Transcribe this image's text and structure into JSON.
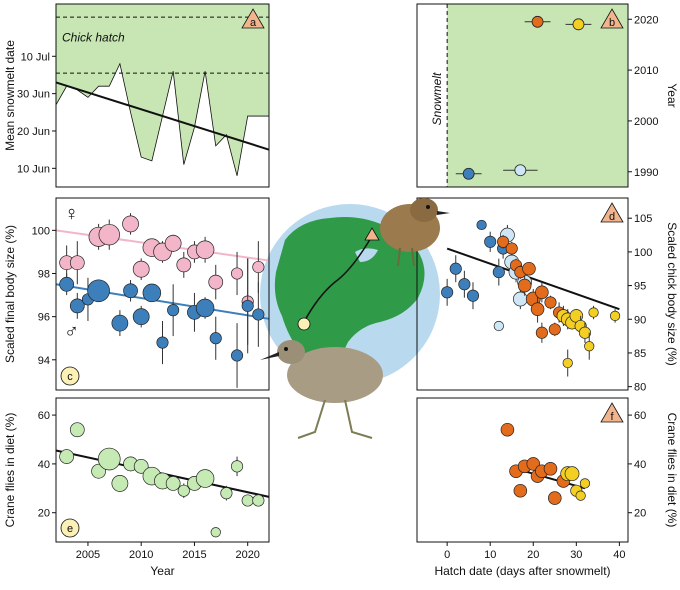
{
  "colors": {
    "shade": "#c8e6b4",
    "female": "#f3b6c8",
    "male": "#3d7fba",
    "light_blue": "#cfe6f6",
    "orange": "#e36b1c",
    "yellow": "#f3cf24",
    "diet": "#c6eab4",
    "panel_label_fill": "#f2b48d",
    "trend": "#111111"
  },
  "icons": {
    "globe": "globe-illustration",
    "chick": "chick-illustration",
    "adult": "adult-shorebird-illustration",
    "female": "female-symbol",
    "male": "male-symbol",
    "marker": "triangle-marker"
  },
  "symbols": {
    "female": "♀",
    "male": "♂"
  },
  "chart_data": [
    {
      "panel": "a",
      "type": "area",
      "ylabel": "Mean snowmelt date",
      "yticks": [
        "10 Jun",
        "20 Jun",
        "30 Jun",
        "10 Jul"
      ],
      "ytick_values": [
        161,
        171,
        181,
        191
      ],
      "ylim": [
        156,
        205
      ],
      "xlim": [
        2002,
        2022
      ],
      "annotation": "Chick hatch",
      "hatch_lines": [
        186.5,
        201.5
      ],
      "x": [
        2002,
        2003,
        2004,
        2005,
        2006,
        2007,
        2008,
        2009,
        2010,
        2011,
        2012,
        2013,
        2014,
        2015,
        2016,
        2017,
        2018,
        2019,
        2020,
        2021,
        2022
      ],
      "values": [
        178,
        183,
        182,
        180,
        183,
        183,
        189,
        176,
        164,
        163,
        175,
        187,
        162,
        172,
        187,
        167,
        170,
        159,
        175,
        175,
        175
      ],
      "trend": [
        [
          2002,
          184
        ],
        [
          2022,
          166
        ]
      ]
    },
    {
      "panel": "b",
      "type": "scatter",
      "ylabel": "Year",
      "yticks": [
        "1990",
        "2000",
        "2010",
        "2020"
      ],
      "ytick_values": [
        1990,
        2000,
        2010,
        2020
      ],
      "ylim": [
        1987,
        2023
      ],
      "xlim": [
        -7,
        42
      ],
      "snowmelt_label": "Snowmelt",
      "points": [
        {
          "x": 5,
          "y": 1989.6,
          "err": 3,
          "color": "#3d7fba"
        },
        {
          "x": 17,
          "y": 1990.3,
          "err": 4,
          "color": "#cfe6f6"
        },
        {
          "x": 21,
          "y": 2019.5,
          "err": 3,
          "color": "#e36b1c"
        },
        {
          "x": 30.5,
          "y": 2019,
          "err": 3,
          "color": "#f3cf24"
        }
      ]
    },
    {
      "panel": "c",
      "type": "scatter",
      "ylabel": "Scaled final body size (%)",
      "yticks": [
        "94",
        "96",
        "98",
        "100"
      ],
      "ytick_values": [
        94,
        96,
        98,
        100
      ],
      "ylim": [
        92.6,
        101.5
      ],
      "xlim": [
        2002,
        2022
      ],
      "female_trend": [
        [
          2002,
          100.0
        ],
        [
          2022,
          98.6
        ]
      ],
      "male_trend": [
        [
          2002,
          97.5
        ],
        [
          2022,
          95.9
        ]
      ],
      "female": [
        {
          "x": 2003,
          "y": 98.5,
          "err": 0.8,
          "n": 2
        },
        {
          "x": 2004,
          "y": 98.5,
          "err": 1.0,
          "n": 2
        },
        {
          "x": 2006,
          "y": 99.7,
          "err": 0.6,
          "n": 5
        },
        {
          "x": 2007,
          "y": 99.8,
          "err": 0.7,
          "n": 6
        },
        {
          "x": 2009,
          "y": 100.3,
          "err": 0.5,
          "n": 3
        },
        {
          "x": 2010,
          "y": 98.2,
          "err": 0.5,
          "n": 3
        },
        {
          "x": 2011,
          "y": 99.2,
          "err": 0.4,
          "n": 4
        },
        {
          "x": 2012,
          "y": 99.0,
          "err": 0.5,
          "n": 4
        },
        {
          "x": 2013,
          "y": 99.4,
          "err": 0.4,
          "n": 3
        },
        {
          "x": 2014,
          "y": 98.4,
          "err": 0.6,
          "n": 2
        },
        {
          "x": 2015,
          "y": 99.0,
          "err": 0.5,
          "n": 2
        },
        {
          "x": 2016,
          "y": 99.1,
          "err": 0.6,
          "n": 4
        },
        {
          "x": 2017,
          "y": 97.6,
          "err": 0.8,
          "n": 2
        },
        {
          "x": 2019,
          "y": 98.0,
          "err": 1.0,
          "n": 1
        },
        {
          "x": 2020,
          "y": 96.7,
          "err": 2.0,
          "n": 1
        },
        {
          "x": 2021,
          "y": 98.3,
          "err": 1.2,
          "n": 1
        }
      ],
      "male": [
        {
          "x": 2003,
          "y": 97.5,
          "err": 0.5,
          "n": 2
        },
        {
          "x": 2004,
          "y": 96.5,
          "err": 0.6,
          "n": 2
        },
        {
          "x": 2005,
          "y": 96.8,
          "err": 1.0,
          "n": 1
        },
        {
          "x": 2006,
          "y": 97.2,
          "err": 0.5,
          "n": 7
        },
        {
          "x": 2008,
          "y": 95.7,
          "err": 0.6,
          "n": 3
        },
        {
          "x": 2009,
          "y": 97.2,
          "err": 0.5,
          "n": 2
        },
        {
          "x": 2010,
          "y": 96.0,
          "err": 0.5,
          "n": 3
        },
        {
          "x": 2011,
          "y": 97.1,
          "err": 0.4,
          "n": 4
        },
        {
          "x": 2012,
          "y": 94.8,
          "err": 1.0,
          "n": 1
        },
        {
          "x": 2013,
          "y": 96.3,
          "err": 1.2,
          "n": 1
        },
        {
          "x": 2015,
          "y": 96.2,
          "err": 0.9,
          "n": 2
        },
        {
          "x": 2016,
          "y": 96.4,
          "err": 0.5,
          "n": 4
        },
        {
          "x": 2017,
          "y": 95.0,
          "err": 1.0,
          "n": 1
        },
        {
          "x": 2019,
          "y": 94.2,
          "err": 1.5,
          "n": 1
        },
        {
          "x": 2020,
          "y": 96.5,
          "err": 2.2,
          "n": 1
        },
        {
          "x": 2021,
          "y": 96.1,
          "err": 1.5,
          "n": 1
        }
      ]
    },
    {
      "panel": "d",
      "type": "scatter",
      "ylabel": "Scaled chick body size (%)",
      "yticks": [
        "80",
        "85",
        "90",
        "95",
        "100",
        "105"
      ],
      "ytick_values": [
        80,
        85,
        90,
        95,
        100,
        105
      ],
      "ylim": [
        79.5,
        108
      ],
      "xlim": [
        -7,
        42
      ],
      "trend": [
        [
          0,
          100.5
        ],
        [
          40,
          91.5
        ]
      ],
      "points": [
        {
          "x": 0,
          "y": 94.0,
          "err": 2,
          "n": 1,
          "c": "#3d7fba"
        },
        {
          "x": 2,
          "y": 97.5,
          "err": 2,
          "n": 1,
          "c": "#3d7fba"
        },
        {
          "x": 4,
          "y": 95.2,
          "err": 2,
          "n": 1,
          "c": "#3d7fba"
        },
        {
          "x": 6,
          "y": 93.5,
          "err": 2,
          "n": 1,
          "c": "#3d7fba"
        },
        {
          "x": 8,
          "y": 104,
          "err": 0,
          "n": 0.5,
          "c": "#3d7fba"
        },
        {
          "x": 10,
          "y": 101.5,
          "err": 1.5,
          "n": 1,
          "c": "#3d7fba"
        },
        {
          "x": 12,
          "y": 97,
          "err": 2,
          "n": 1,
          "c": "#3d7fba"
        },
        {
          "x": 13,
          "y": 100.5,
          "err": 1.5,
          "n": 1,
          "c": "#3d7fba"
        },
        {
          "x": 14,
          "y": 102.5,
          "err": 1.5,
          "n": 2,
          "c": "#cfe6f6"
        },
        {
          "x": 15,
          "y": 98.5,
          "err": 1.5,
          "n": 2,
          "c": "#cfe6f6"
        },
        {
          "x": 16,
          "y": 97,
          "err": 1.5,
          "n": 2,
          "c": "#cfe6f6"
        },
        {
          "x": 17,
          "y": 93,
          "err": 1.5,
          "n": 2,
          "c": "#cfe6f6"
        },
        {
          "x": 18,
          "y": 95.5,
          "err": 1.5,
          "n": 2,
          "c": "#cfe6f6"
        },
        {
          "x": 12,
          "y": 89,
          "err": 0,
          "n": 0.5,
          "c": "#cfe6f6"
        },
        {
          "x": 13,
          "y": 101.5,
          "err": 1,
          "n": 1,
          "c": "#e36b1c"
        },
        {
          "x": 15,
          "y": 100.5,
          "err": 1,
          "n": 1,
          "c": "#e36b1c"
        },
        {
          "x": 16,
          "y": 98,
          "err": 1,
          "n": 1,
          "c": "#e36b1c"
        },
        {
          "x": 17,
          "y": 97,
          "err": 1,
          "n": 1,
          "c": "#e36b1c"
        },
        {
          "x": 18,
          "y": 95,
          "err": 1.5,
          "n": 1.5,
          "c": "#e36b1c"
        },
        {
          "x": 19,
          "y": 97.5,
          "err": 1,
          "n": 1.5,
          "c": "#e36b1c"
        },
        {
          "x": 20,
          "y": 93,
          "err": 1.5,
          "n": 2,
          "c": "#e36b1c"
        },
        {
          "x": 21,
          "y": 91.5,
          "err": 2,
          "n": 1.5,
          "c": "#e36b1c"
        },
        {
          "x": 22,
          "y": 94,
          "err": 1.5,
          "n": 1.5,
          "c": "#e36b1c"
        },
        {
          "x": 22,
          "y": 88,
          "err": 1.5,
          "n": 1,
          "c": "#e36b1c"
        },
        {
          "x": 24,
          "y": 92.5,
          "err": 1,
          "n": 1,
          "c": "#e36b1c"
        },
        {
          "x": 25,
          "y": 88.5,
          "err": 1,
          "n": 1,
          "c": "#e36b1c"
        },
        {
          "x": 26,
          "y": 91,
          "err": 1.5,
          "n": 1,
          "c": "#e36b1c"
        },
        {
          "x": 27,
          "y": 90.5,
          "err": 1.5,
          "n": 1.5,
          "c": "#f3cf24"
        },
        {
          "x": 28,
          "y": 90,
          "err": 1.5,
          "n": 1.5,
          "c": "#f3cf24"
        },
        {
          "x": 29,
          "y": 89.5,
          "err": 1,
          "n": 1.5,
          "c": "#f3cf24"
        },
        {
          "x": 30,
          "y": 90.5,
          "err": 1,
          "n": 1.5,
          "c": "#f3cf24"
        },
        {
          "x": 31,
          "y": 89,
          "err": 1.5,
          "n": 1,
          "c": "#f3cf24"
        },
        {
          "x": 32,
          "y": 88,
          "err": 1.5,
          "n": 1,
          "c": "#f3cf24"
        },
        {
          "x": 33,
          "y": 86,
          "err": 2,
          "n": 0.5,
          "c": "#f3cf24"
        },
        {
          "x": 34,
          "y": 91,
          "err": 1,
          "n": 0.5,
          "c": "#f3cf24"
        },
        {
          "x": 39,
          "y": 90.5,
          "err": 1,
          "n": 0.5,
          "c": "#f3cf24"
        },
        {
          "x": 28,
          "y": 83.5,
          "err": 2,
          "n": 0.5,
          "c": "#f3cf24"
        }
      ]
    },
    {
      "panel": "e",
      "type": "scatter",
      "ylabel": "Crane flies in diet (%)",
      "xlabel": "Year",
      "xticks": [
        "2005",
        "2010",
        "2015",
        "2020"
      ],
      "xtick_values": [
        2005,
        2010,
        2015,
        2020
      ],
      "yticks": [
        "20",
        "40",
        "60"
      ],
      "ytick_values": [
        20,
        40,
        60
      ],
      "ylim": [
        8,
        67
      ],
      "xlim": [
        2002,
        2022
      ],
      "trend": [
        [
          2002,
          45.5
        ],
        [
          2022,
          26.5
        ]
      ],
      "points": [
        {
          "x": 2003,
          "y": 43,
          "err": 3,
          "n": 2
        },
        {
          "x": 2004,
          "y": 54,
          "err": 3,
          "n": 2
        },
        {
          "x": 2006,
          "y": 37,
          "err": 3,
          "n": 2
        },
        {
          "x": 2007,
          "y": 42,
          "err": 3,
          "n": 7
        },
        {
          "x": 2008,
          "y": 32,
          "err": 3,
          "n": 3
        },
        {
          "x": 2009,
          "y": 40,
          "err": 3,
          "n": 2
        },
        {
          "x": 2010,
          "y": 39,
          "err": 3,
          "n": 2
        },
        {
          "x": 2011,
          "y": 35,
          "err": 3,
          "n": 4
        },
        {
          "x": 2012,
          "y": 33,
          "err": 3,
          "n": 3
        },
        {
          "x": 2013,
          "y": 32,
          "err": 2,
          "n": 2
        },
        {
          "x": 2014,
          "y": 29,
          "err": 3,
          "n": 1
        },
        {
          "x": 2015,
          "y": 32,
          "err": 3,
          "n": 2
        },
        {
          "x": 2016,
          "y": 34,
          "err": 3,
          "n": 4
        },
        {
          "x": 2017,
          "y": 12,
          "err": 0,
          "n": 0.5
        },
        {
          "x": 2018,
          "y": 28,
          "err": 3,
          "n": 1
        },
        {
          "x": 2019,
          "y": 39,
          "err": 4,
          "n": 1
        },
        {
          "x": 2020,
          "y": 25,
          "err": 2,
          "n": 1
        },
        {
          "x": 2021,
          "y": 25,
          "err": 2,
          "n": 1
        }
      ]
    },
    {
      "panel": "f",
      "type": "scatter",
      "ylabel": "Crane flies in diet (%)",
      "xlabel": "Hatch date (days after snowmelt)",
      "xticks": [
        "0",
        "10",
        "20",
        "30",
        "40"
      ],
      "xtick_values": [
        0,
        10,
        20,
        30,
        40
      ],
      "yticks": [
        "20",
        "40",
        "60"
      ],
      "ytick_values": [
        20,
        40,
        60
      ],
      "ylim": [
        8,
        67
      ],
      "xlim": [
        -7,
        42
      ],
      "trend": [
        [
          16,
          38
        ],
        [
          32,
          30
        ]
      ],
      "points": [
        {
          "x": 14,
          "y": 54,
          "err": 0,
          "n": 1.5,
          "c": "#e36b1c"
        },
        {
          "x": 16,
          "y": 37,
          "err": 0,
          "n": 1.5,
          "c": "#e36b1c"
        },
        {
          "x": 17,
          "y": 29,
          "err": 0,
          "n": 1.5,
          "c": "#e36b1c"
        },
        {
          "x": 18,
          "y": 39,
          "err": 0,
          "n": 1.5,
          "c": "#e36b1c"
        },
        {
          "x": 20,
          "y": 40,
          "err": 0,
          "n": 1.5,
          "c": "#e36b1c"
        },
        {
          "x": 21,
          "y": 35,
          "err": 0,
          "n": 1.5,
          "c": "#e36b1c"
        },
        {
          "x": 22,
          "y": 37,
          "err": 0,
          "n": 1.5,
          "c": "#e36b1c"
        },
        {
          "x": 24,
          "y": 38,
          "err": 0,
          "n": 1.5,
          "c": "#e36b1c"
        },
        {
          "x": 25,
          "y": 26,
          "err": 0,
          "n": 1.5,
          "c": "#e36b1c"
        },
        {
          "x": 27,
          "y": 33,
          "err": 0,
          "n": 1.5,
          "c": "#e36b1c"
        },
        {
          "x": 28,
          "y": 36,
          "err": 0,
          "n": 2,
          "c": "#f3cf24"
        },
        {
          "x": 29,
          "y": 36,
          "err": 0,
          "n": 2,
          "c": "#f3cf24"
        },
        {
          "x": 30,
          "y": 29,
          "err": 0,
          "n": 1,
          "c": "#f3cf24"
        },
        {
          "x": 31,
          "y": 27,
          "err": 0,
          "n": 0.5,
          "c": "#f3cf24"
        },
        {
          "x": 32,
          "y": 32,
          "err": 0,
          "n": 0.5,
          "c": "#f3cf24"
        }
      ]
    }
  ]
}
